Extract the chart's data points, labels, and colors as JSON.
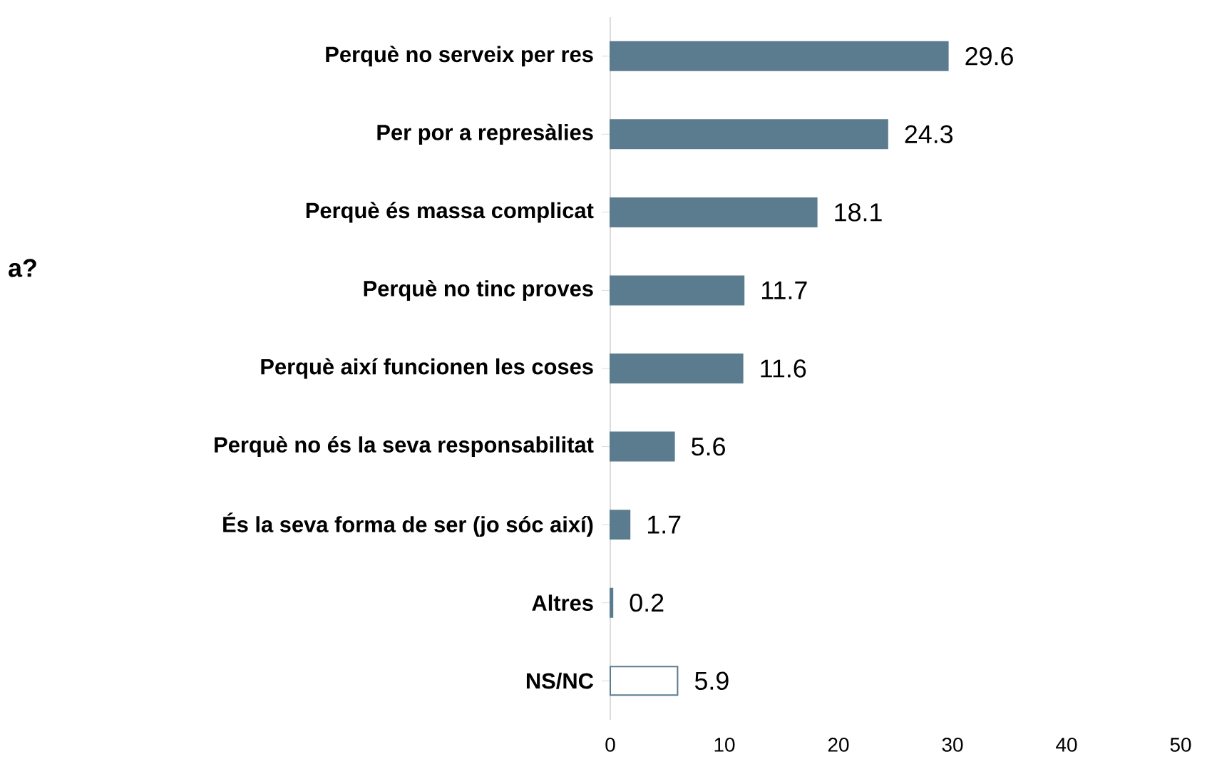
{
  "chart_data": {
    "type": "bar",
    "orientation": "horizontal",
    "categories": [
      "Perquè no serveix per res",
      "Per por a represàlies",
      "Perquè és massa complicat",
      "Perquè no tinc proves",
      "Perquè així funcionen les coses",
      "Perquè no és la seva responsabilitat",
      "És la seva forma de ser (jo sóc així)",
      "Altres",
      "NS/NC"
    ],
    "values": [
      29.6,
      24.3,
      18.1,
      11.7,
      11.6,
      5.6,
      1.7,
      0.2,
      5.9
    ],
    "color": "#5b7b8e",
    "colors": [
      "#5b7b8e",
      "#5b7b8e",
      "#5b7b8e",
      "#5b7b8e",
      "#5b7b8e",
      "#5b7b8e",
      "#5b7b8e",
      "#5b7b8e",
      "#ffffff"
    ],
    "xlim": [
      0,
      50
    ],
    "xticks": [
      0,
      10,
      20,
      30,
      40,
      50
    ],
    "data_labels": true,
    "grid": false,
    "annotations": [
      "a?"
    ]
  }
}
